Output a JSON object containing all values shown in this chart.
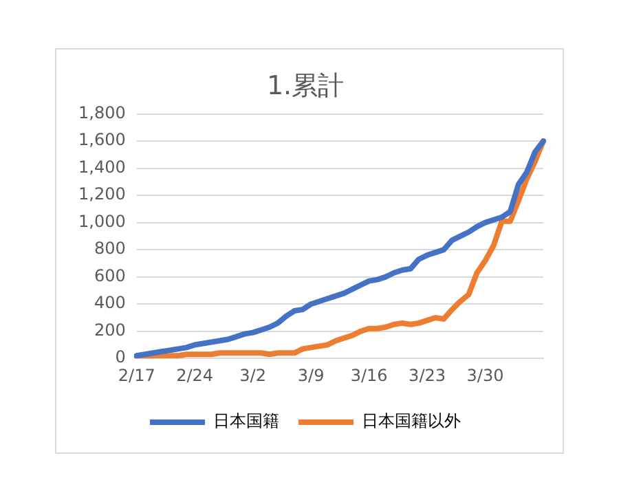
{
  "chart_data": {
    "type": "line",
    "title": "1.累計",
    "categories": [
      "2/17",
      null,
      null,
      null,
      null,
      null,
      null,
      "2/24",
      null,
      null,
      null,
      null,
      null,
      null,
      "3/2",
      null,
      null,
      null,
      null,
      null,
      null,
      "3/9",
      null,
      null,
      null,
      null,
      null,
      null,
      "3/16",
      null,
      null,
      null,
      null,
      null,
      null,
      "3/23",
      null,
      null,
      null,
      null,
      null,
      null,
      "3/30",
      null,
      null,
      null,
      null,
      null,
      null,
      null
    ],
    "series": [
      {
        "name": "日本国籍",
        "color": "#4472c4",
        "values": [
          20,
          30,
          40,
          50,
          60,
          70,
          80,
          100,
          110,
          120,
          130,
          140,
          160,
          180,
          190,
          210,
          230,
          260,
          310,
          350,
          360,
          400,
          420,
          440,
          460,
          480,
          510,
          540,
          570,
          580,
          600,
          630,
          650,
          660,
          730,
          760,
          780,
          800,
          870,
          900,
          930,
          970,
          1000,
          1020,
          1040,
          1080,
          1280,
          1370,
          1520,
          1600
        ]
      },
      {
        "name": "日本国籍以外",
        "color": "#ed7d31",
        "values": [
          10,
          10,
          20,
          20,
          20,
          20,
          30,
          30,
          30,
          30,
          40,
          40,
          40,
          40,
          40,
          40,
          30,
          40,
          40,
          40,
          70,
          80,
          90,
          100,
          130,
          150,
          170,
          200,
          220,
          220,
          230,
          250,
          260,
          250,
          260,
          280,
          300,
          290,
          360,
          420,
          470,
          630,
          720,
          830,
          1010,
          1010,
          1160,
          1320,
          1450,
          1600
        ]
      }
    ],
    "ylim": [
      0,
      1800
    ],
    "yticks": [
      0,
      200,
      400,
      600,
      800,
      {
        "value": 1000,
        "label": "1,000"
      },
      {
        "value": 1200,
        "label": "1,200"
      },
      {
        "value": 1400,
        "label": "1,400"
      },
      {
        "value": 1600,
        "label": "1,600"
      },
      {
        "value": 1800,
        "label": "1,800"
      }
    ],
    "grid": "y",
    "legend": "bottom",
    "marker": "none",
    "line_style": "solid"
  }
}
